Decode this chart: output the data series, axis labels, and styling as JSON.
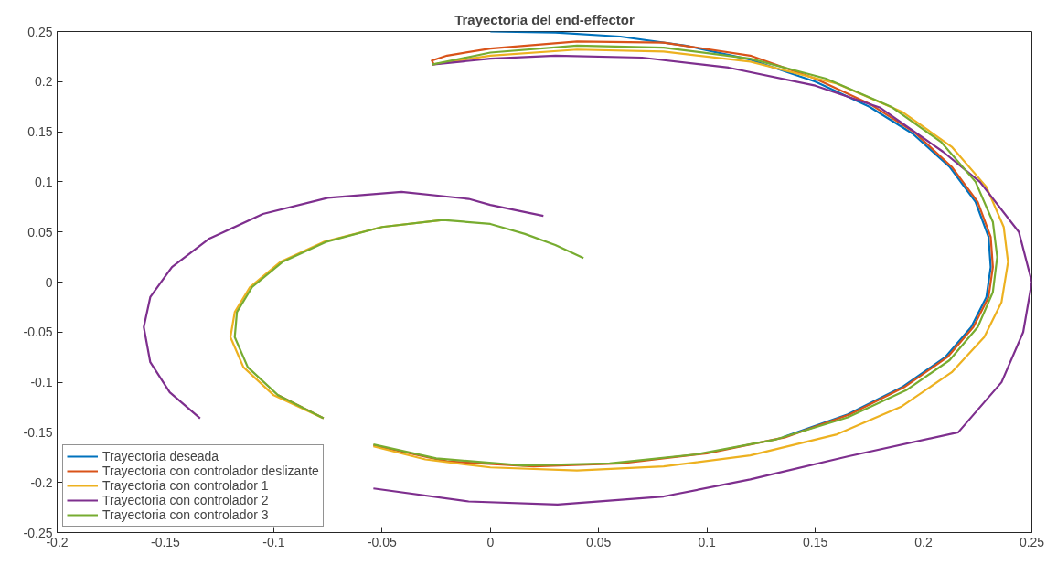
{
  "chart_data": {
    "type": "line",
    "title": "Trayectoria del end-effector",
    "xlim": [
      -0.2,
      0.25
    ],
    "ylim": [
      -0.25,
      0.25
    ],
    "xticks": [
      -0.2,
      -0.15,
      -0.1,
      -0.05,
      0,
      0.05,
      0.1,
      0.15,
      0.2,
      0.25
    ],
    "yticks": [
      -0.25,
      -0.2,
      -0.15,
      -0.1,
      -0.05,
      0,
      0.05,
      0.1,
      0.15,
      0.2,
      0.25
    ],
    "grid": false,
    "legend": "bottom left",
    "line_style": "solid",
    "marker": "none",
    "series": [
      {
        "name": "Trayectoria deseada",
        "color": "#0072bd",
        "x": [
          0,
          0.03,
          0.06,
          0.09,
          0.12,
          0.15,
          0.175,
          0.195,
          0.212,
          0.224,
          0.23,
          0.231,
          0.229,
          0.222,
          0.21,
          0.19,
          0.165,
          0.135
        ],
        "values": [
          0.25,
          0.249,
          0.245,
          0.236,
          0.222,
          0.2,
          0.175,
          0.148,
          0.115,
          0.08,
          0.045,
          0.015,
          -0.015,
          -0.045,
          -0.075,
          -0.105,
          -0.132,
          -0.155
        ]
      },
      {
        "name": "Trayectoria con controlador deslizante",
        "color": "#d95319",
        "x": [
          -0.026,
          -0.027,
          -0.02,
          0,
          0.04,
          0.08,
          0.12,
          0.15,
          0.175,
          0.196,
          0.213,
          0.225,
          0.231,
          0.232,
          0.23,
          0.223,
          0.211,
          0.191,
          0.166,
          0.136,
          0.1,
          0.06,
          0.02,
          -0.02,
          -0.054,
          -0.066,
          -0.077,
          -0.098
        ],
        "values": [
          0.217,
          0.221,
          0.226,
          0.233,
          0.24,
          0.239,
          0.226,
          0.203,
          0.178,
          0.149,
          0.115,
          0.08,
          0.045,
          0.015,
          -0.015,
          -0.045,
          -0.075,
          -0.105,
          -0.132,
          -0.155,
          -0.171,
          -0.181,
          -0.184,
          -0.179,
          -0.163,
          null,
          -0.136,
          -0.113
        ]
      },
      {
        "name": "Trayectoria con controlador 1",
        "color": "#edb120",
        "x": [
          -0.027,
          0,
          0.04,
          0.08,
          0.12,
          0.16,
          0.19,
          0.213,
          0.229,
          0.237,
          0.239,
          0.236,
          0.228,
          0.213,
          0.19,
          0.16,
          0.12,
          0.08,
          0.04,
          0,
          -0.03,
          -0.054,
          -0.066,
          -0.078,
          -0.1,
          -0.114,
          -0.12,
          -0.118,
          -0.111,
          -0.097,
          -0.077,
          -0.05,
          -0.022
        ],
        "values": [
          0.217,
          0.226,
          0.232,
          0.23,
          0.22,
          0.198,
          0.17,
          0.135,
          0.095,
          0.055,
          0.02,
          -0.02,
          -0.055,
          -0.09,
          -0.124,
          -0.152,
          -0.173,
          -0.184,
          -0.188,
          -0.185,
          -0.177,
          -0.164,
          null,
          -0.135,
          -0.113,
          -0.085,
          -0.055,
          -0.03,
          -0.005,
          0.02,
          0.04,
          0.055,
          0.062
        ]
      },
      {
        "name": "Trayectoria con controlador 2",
        "color": "#7e2f8e",
        "x": [
          -0.027,
          0,
          0.03,
          0.07,
          0.11,
          0.15,
          0.18,
          0.209,
          0.226,
          0.244,
          0.25,
          0.246,
          0.236,
          0.216,
          0.165,
          0.12,
          0.08,
          0.031,
          -0.01,
          -0.054,
          -0.09,
          -0.134,
          -0.148,
          -0.157,
          -0.16,
          -0.157,
          -0.147,
          -0.13,
          -0.105,
          -0.075,
          -0.041,
          -0.01,
          0,
          0.0245
        ],
        "values": [
          0.217,
          0.223,
          0.226,
          0.224,
          0.214,
          0.196,
          0.174,
          0.13,
          0.1,
          0.05,
          0,
          -0.05,
          -0.1,
          -0.15,
          -0.174,
          -0.197,
          -0.214,
          -0.222,
          -0.219,
          -0.206,
          null,
          -0.136,
          -0.11,
          -0.08,
          -0.045,
          -0.015,
          0.015,
          0.043,
          0.068,
          0.084,
          0.09,
          0.083,
          0.077,
          0.066
        ]
      },
      {
        "name": "Trayectoria con controlador 3",
        "color": "#77ac30",
        "x": [
          -0.027,
          0,
          0.04,
          0.08,
          0.12,
          0.155,
          0.185,
          0.208,
          0.224,
          0.232,
          0.234,
          0.232,
          0.225,
          0.212,
          0.192,
          0.165,
          0.132,
          0.095,
          0.055,
          0.015,
          -0.025,
          -0.054,
          -0.066,
          -0.077,
          -0.098,
          -0.112,
          -0.118,
          -0.117,
          -0.11,
          -0.096,
          -0.076,
          -0.05,
          -0.022,
          0,
          0.016,
          0.03,
          0.043
        ],
        "values": [
          0.217,
          0.229,
          0.236,
          0.234,
          0.223,
          0.203,
          0.175,
          0.14,
          0.1,
          0.06,
          0.025,
          -0.01,
          -0.045,
          -0.078,
          -0.108,
          -0.135,
          -0.157,
          -0.172,
          -0.181,
          -0.183,
          -0.176,
          -0.162,
          null,
          -0.136,
          -0.113,
          -0.085,
          -0.055,
          -0.03,
          -0.005,
          0.02,
          0.04,
          0.055,
          0.062,
          0.058,
          0.048,
          0.037,
          0.024
        ]
      }
    ]
  }
}
